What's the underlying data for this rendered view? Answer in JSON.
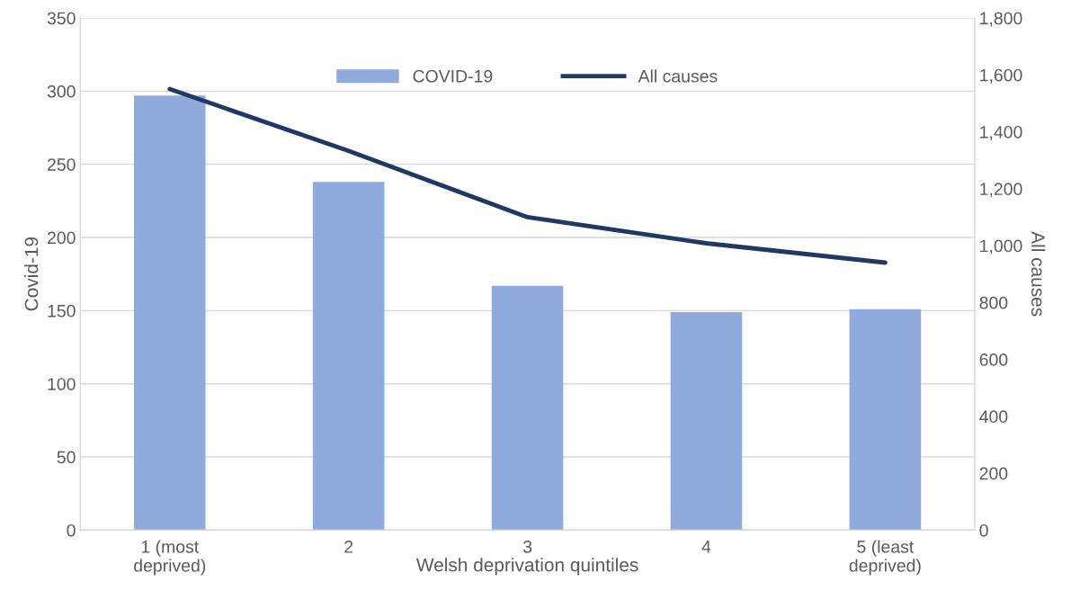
{
  "chart_data": {
    "type": "bar",
    "xlabel": "Welsh deprivation quintiles",
    "ylabel": "Covid-19",
    "y2label": "All causes",
    "categories": [
      "1 (most\ndeprived)",
      "2",
      "3",
      "4",
      "5 (least\ndeprived)"
    ],
    "series": [
      {
        "name": "COVID-19",
        "color": "#8faadc",
        "values": [
          297,
          238,
          167,
          149,
          151
        ]
      },
      {
        "name": "All causes",
        "type": "line",
        "axis": "y2",
        "color": "#203864",
        "values": [
          1550,
          1333,
          1100,
          1008,
          940
        ]
      }
    ],
    "ylim": [
      0,
      350
    ],
    "yticks": [
      0,
      50,
      100,
      150,
      200,
      250,
      300,
      350
    ],
    "y2lim": [
      0,
      1800
    ],
    "y2ticks": [
      {
        "value": 0,
        "label": "0"
      },
      {
        "value": 200,
        "label": "200"
      },
      {
        "value": 400,
        "label": "400"
      },
      {
        "value": 600,
        "label": "600"
      },
      {
        "value": 800,
        "label": "800"
      },
      {
        "value": 1000,
        "label": "1,000"
      },
      {
        "value": 1200,
        "label": "1,200"
      },
      {
        "value": 1400,
        "label": "1,400"
      },
      {
        "value": 1600,
        "label": "1,600"
      },
      {
        "value": 1800,
        "label": "1,800"
      }
    ],
    "grid": "y",
    "legend": "top",
    "marker": "none",
    "line_style": "solid"
  }
}
